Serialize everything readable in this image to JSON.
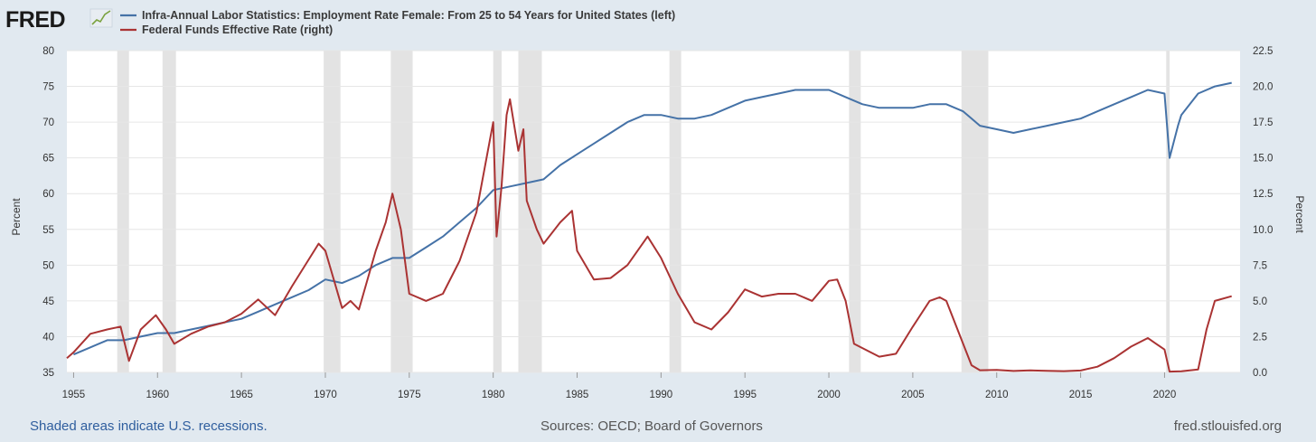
{
  "logo": {
    "text": "FRED"
  },
  "chart_data": {
    "type": "line",
    "title": "",
    "legend_position": "top-left",
    "xlim": [
      1954.6,
      2024.5
    ],
    "x_ticks": [
      1955,
      1960,
      1965,
      1970,
      1975,
      1980,
      1985,
      1990,
      1995,
      2000,
      2005,
      2010,
      2015,
      2020
    ],
    "y_left": {
      "label": "Percent",
      "lim": [
        35,
        80
      ],
      "ticks": [
        "35",
        "40",
        "45",
        "50",
        "55",
        "60",
        "65",
        "70",
        "75",
        "80"
      ]
    },
    "y_right": {
      "label": "Percent",
      "lim": [
        0,
        22.5
      ],
      "ticks": [
        "0.0",
        "2.5",
        "5.0",
        "7.5",
        "10.0",
        "12.5",
        "15.0",
        "17.5",
        "20.0",
        "22.5"
      ]
    },
    "grid": "horizontal",
    "recessions": [
      [
        1957.6,
        1958.3
      ],
      [
        1960.3,
        1961.1
      ],
      [
        1969.9,
        1970.9
      ],
      [
        1973.9,
        1975.2
      ],
      [
        1980.0,
        1980.5
      ],
      [
        1981.5,
        1982.9
      ],
      [
        1990.5,
        1991.2
      ],
      [
        2001.2,
        2001.9
      ],
      [
        2007.9,
        2009.5
      ],
      [
        2020.1,
        2020.3
      ]
    ],
    "series": [
      {
        "name": "Infra-Annual Labor Statistics: Employment Rate Female: From 25 to 54 Years for United States (left)",
        "axis": "left",
        "color": "#4572a7",
        "x": [
          1955,
          1956,
          1957,
          1958,
          1959,
          1960,
          1961,
          1962,
          1963,
          1964,
          1965,
          1966,
          1967,
          1968,
          1969,
          1970,
          1971,
          1972,
          1973,
          1974,
          1975,
          1976,
          1977,
          1978,
          1979,
          1980,
          1981,
          1982,
          1983,
          1984,
          1985,
          1986,
          1987,
          1988,
          1989,
          1990,
          1991,
          1992,
          1993,
          1994,
          1995,
          1996,
          1997,
          1998,
          1999,
          2000,
          2001,
          2002,
          2003,
          2004,
          2005,
          2006,
          2007,
          2008,
          2009,
          2010,
          2011,
          2012,
          2013,
          2014,
          2015,
          2016,
          2017,
          2018,
          2019,
          2020,
          2020.3,
          2020.8,
          2021,
          2022,
          2023,
          2024
        ],
        "values": [
          37.5,
          38.5,
          39.5,
          39.5,
          40.0,
          40.5,
          40.5,
          41.0,
          41.5,
          42.0,
          42.5,
          43.5,
          44.5,
          45.5,
          46.5,
          48.0,
          47.5,
          48.5,
          50.0,
          51.0,
          51.0,
          52.5,
          54.0,
          56.0,
          58.0,
          60.5,
          61.0,
          61.5,
          62.0,
          64.0,
          65.5,
          67.0,
          68.5,
          70.0,
          71.0,
          71.0,
          70.5,
          70.5,
          71.0,
          72.0,
          73.0,
          73.5,
          74.0,
          74.5,
          74.5,
          74.5,
          73.5,
          72.5,
          72.0,
          72.0,
          72.0,
          72.5,
          72.5,
          71.5,
          69.5,
          69.0,
          68.5,
          69.0,
          69.5,
          70.0,
          70.5,
          71.5,
          72.5,
          73.5,
          74.5,
          74.0,
          65.0,
          69.5,
          71.0,
          74.0,
          75.0,
          75.5
        ]
      },
      {
        "name": "Federal Funds Effective Rate (right)",
        "axis": "right",
        "color": "#aa3333",
        "x": [
          1954.6,
          1955,
          1956,
          1957,
          1957.8,
          1958.3,
          1959,
          1959.9,
          1960.5,
          1961,
          1962,
          1963,
          1964,
          1965,
          1966,
          1967,
          1968,
          1969.6,
          1970,
          1971,
          1971.5,
          1972,
          1973,
          1973.6,
          1974,
          1974.5,
          1975,
          1976,
          1977,
          1978,
          1979,
          1980,
          1980.2,
          1980.5,
          1980.8,
          1981,
          1981.5,
          1981.8,
          1982,
          1982.6,
          1983,
          1984,
          1984.7,
          1985,
          1986,
          1987,
          1988,
          1989.2,
          1990,
          1991,
          1992,
          1993,
          1994,
          1995,
          1996,
          1997,
          1998,
          1999,
          2000,
          2000.5,
          2001,
          2001.5,
          2002,
          2003,
          2004,
          2005,
          2006,
          2006.6,
          2007,
          2008,
          2008.5,
          2009,
          2010,
          2011,
          2012,
          2013,
          2014,
          2015,
          2016,
          2017,
          2018,
          2019,
          2019.5,
          2020,
          2020.3,
          2021,
          2022,
          2022.5,
          2023,
          2024
        ],
        "values": [
          1.0,
          1.4,
          2.7,
          3.0,
          3.2,
          0.8,
          3.0,
          4.0,
          3.0,
          2.0,
          2.7,
          3.2,
          3.5,
          4.1,
          5.1,
          4.0,
          6.0,
          9.0,
          8.5,
          4.5,
          5.0,
          4.4,
          8.5,
          10.5,
          12.5,
          10.0,
          5.5,
          5.0,
          5.5,
          7.8,
          11.2,
          17.5,
          9.5,
          13.0,
          18.0,
          19.1,
          15.5,
          17.0,
          12.0,
          10.0,
          9.0,
          10.5,
          11.3,
          8.5,
          6.5,
          6.6,
          7.5,
          9.5,
          8.0,
          5.5,
          3.5,
          3.0,
          4.2,
          5.8,
          5.3,
          5.5,
          5.5,
          5.0,
          6.4,
          6.5,
          5.0,
          2.0,
          1.7,
          1.1,
          1.3,
          3.2,
          5.0,
          5.25,
          5.0,
          2.0,
          0.5,
          0.15,
          0.18,
          0.1,
          0.14,
          0.11,
          0.09,
          0.13,
          0.4,
          1.0,
          1.8,
          2.4,
          2.0,
          1.6,
          0.06,
          0.08,
          0.2,
          3.0,
          5.0,
          5.33
        ]
      }
    ]
  },
  "footer": {
    "left": "Shaded areas indicate U.S. recessions.",
    "center": "Sources: OECD; Board of Governors",
    "right": "fred.stlouisfed.org"
  }
}
